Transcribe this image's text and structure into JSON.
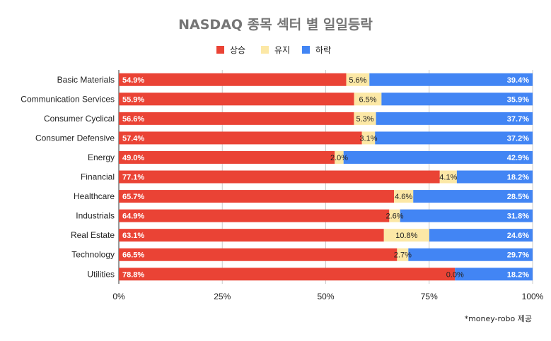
{
  "chart_data": {
    "type": "bar",
    "orientation": "horizontal",
    "stacked": "percent",
    "title": "NASDAQ 종목 섹터 별 일일등락",
    "categories": [
      "Basic Materials",
      "Communication Services",
      "Consumer Cyclical",
      "Consumer Defensive",
      "Energy",
      "Financial",
      "Healthcare",
      "Industrials",
      "Real Estate",
      "Technology",
      "Utilities"
    ],
    "series": [
      {
        "name": "상승",
        "color": "#ea4335",
        "values": [
          54.9,
          55.9,
          56.6,
          57.4,
          49.0,
          77.1,
          65.7,
          64.9,
          63.1,
          66.5,
          78.8
        ]
      },
      {
        "name": "유지",
        "color": "#fce8a6",
        "values": [
          5.6,
          6.5,
          5.3,
          3.1,
          2.0,
          4.1,
          4.6,
          2.6,
          10.8,
          2.7,
          0.0
        ]
      },
      {
        "name": "하락",
        "color": "#4285f4",
        "values": [
          39.4,
          35.9,
          37.7,
          37.2,
          42.9,
          18.2,
          28.5,
          31.8,
          24.6,
          29.7,
          18.2
        ]
      }
    ],
    "data_labels": [
      [
        "54.9%",
        "5.6%",
        "39.4%"
      ],
      [
        "55.9%",
        "6.5%",
        "35.9%"
      ],
      [
        "56.6%",
        "5.3%",
        "37.7%"
      ],
      [
        "57.4%",
        "3.1%",
        "37.2%"
      ],
      [
        "49.0%",
        "2.0%",
        "42.9%"
      ],
      [
        "77.1%",
        "4.1%",
        "18.2%"
      ],
      [
        "65.7%",
        "4.6%",
        "28.5%"
      ],
      [
        "64.9%",
        "2.6%",
        "31.8%"
      ],
      [
        "63.1%",
        "10.8%",
        "24.6%"
      ],
      [
        "66.5%",
        "2.7%",
        "29.7%"
      ],
      [
        "78.8%",
        "0.0%",
        "18.2%"
      ]
    ],
    "xaxis": {
      "ticks": [
        0,
        25,
        50,
        75,
        100
      ],
      "tick_labels": [
        "0%",
        "25%",
        "50%",
        "75%",
        "100%"
      ],
      "range": [
        0,
        100
      ]
    },
    "legend": {
      "position": "top-center"
    },
    "grid": true
  },
  "credit": "*money-robo 제공"
}
